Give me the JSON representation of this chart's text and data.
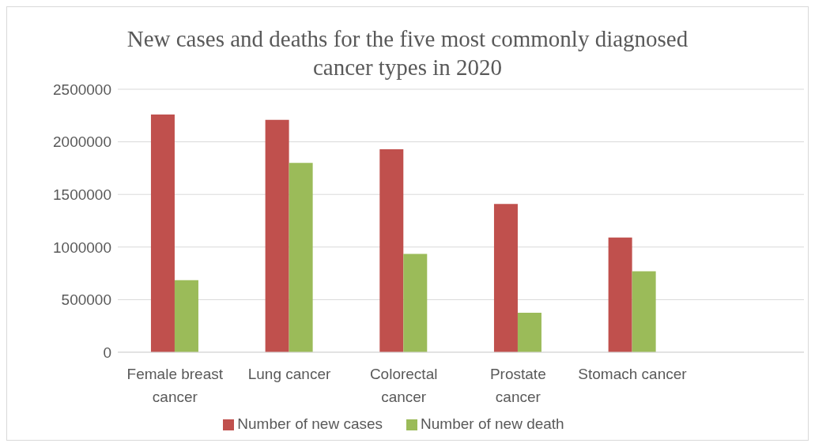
{
  "chart_data": {
    "type": "bar",
    "title": "New cases and deaths for the five most commonly diagnosed cancer types in 2020",
    "categories": [
      "Female breast cancer",
      "Lung cancer",
      "Colorectal cancer",
      "Prostate cancer",
      "Stomach cancer",
      null
    ],
    "series": [
      {
        "name": "Number of new cases",
        "color": "#c0504d",
        "values": [
          2260000,
          2210000,
          1930000,
          1410000,
          1090000,
          null
        ]
      },
      {
        "name": "Number of new death",
        "color": "#9bbb59",
        "values": [
          685000,
          1800000,
          935000,
          375000,
          769000,
          null
        ]
      }
    ],
    "ylim": [
      0,
      2500000
    ],
    "yticks": [
      0,
      500000,
      1000000,
      1500000,
      2000000,
      2500000
    ],
    "grid": "y",
    "legend": "bottom"
  }
}
